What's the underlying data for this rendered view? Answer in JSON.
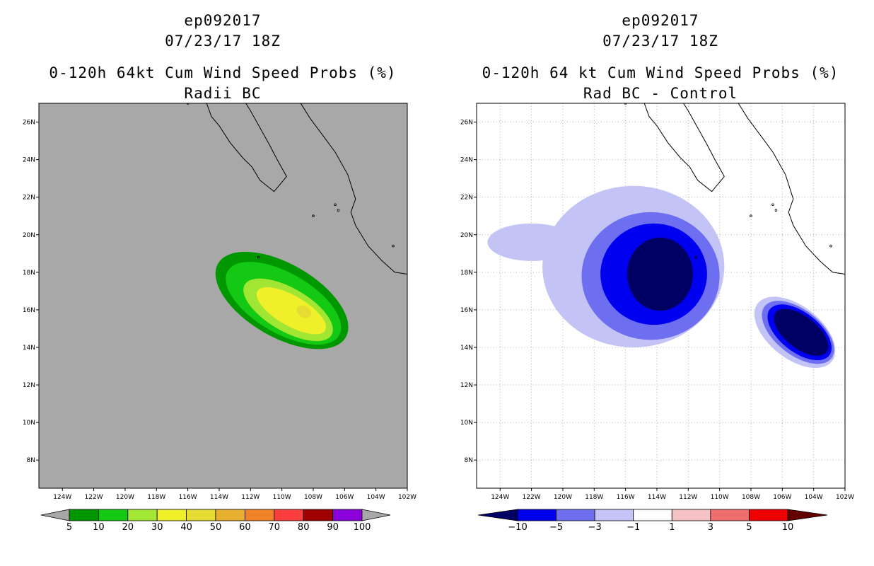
{
  "left_panel": {
    "title_lines": [
      "ep092017",
      "07/23/17 18Z",
      "0-120h 64kt Cum Wind Speed Probs (%)",
      "Radii BC"
    ]
  },
  "right_panel": {
    "title_lines": [
      "ep092017",
      "07/23/17 18Z",
      "0-120h 64 kt Cum Wind Speed Probs (%)",
      "Rad BC - Control"
    ]
  },
  "chart_data": [
    {
      "type": "heatmap",
      "title": "0-120h 64kt Cum Wind Speed Probs (%)",
      "subtitle": "Radii BC",
      "storm_id": "ep092017",
      "valid_time": "07/23/17 18Z",
      "x_ticks": [
        "124W",
        "122W",
        "120W",
        "118W",
        "116W",
        "114W",
        "112W",
        "110W",
        "108W",
        "106W",
        "104W",
        "102W"
      ],
      "y_ticks": [
        "8N",
        "10N",
        "12N",
        "14N",
        "16N",
        "18N",
        "20N",
        "22N",
        "24N",
        "26N"
      ],
      "xlim": [
        -125.5,
        -102
      ],
      "ylim": [
        6.5,
        27
      ],
      "grid": false,
      "background": "#a8a8a8",
      "colorbar": {
        "levels": [
          "5",
          "10",
          "20",
          "30",
          "40",
          "50",
          "60",
          "70",
          "80",
          "90",
          "100"
        ],
        "colors": [
          "#009700",
          "#14c914",
          "#a0e632",
          "#f0f02a",
          "#e6dc32",
          "#e6af2d",
          "#f08228",
          "#fa3c3c",
          "#a00000",
          "#8c00dc"
        ],
        "end_color": "#a8a8a8"
      },
      "contours": [
        {
          "level": 5,
          "color": "#009700",
          "center": [
            -110.0,
            16.5
          ],
          "rx_deg": 4.7,
          "ry_deg": 1.95,
          "rot_deg": 30
        },
        {
          "level": 10,
          "color": "#14c914",
          "center": [
            -109.9,
            16.35
          ],
          "rx_deg": 4.1,
          "ry_deg": 1.6,
          "rot_deg": 30
        },
        {
          "level": 20,
          "color": "#a0e632",
          "center": [
            -109.6,
            16.0
          ],
          "rx_deg": 3.2,
          "ry_deg": 1.15,
          "rot_deg": 30
        },
        {
          "level": 30,
          "color": "#f0f02a",
          "center": [
            -109.4,
            15.95
          ],
          "rx_deg": 2.5,
          "ry_deg": 0.8,
          "rot_deg": 30
        },
        {
          "level": 40,
          "color": "#e6dc32",
          "center": [
            -108.6,
            15.9
          ],
          "rx_deg": 0.5,
          "ry_deg": 0.3,
          "rot_deg": 30
        }
      ]
    },
    {
      "type": "heatmap",
      "title": "0-120h 64 kt Cum Wind Speed Probs (%)",
      "subtitle": "Rad BC - Control",
      "storm_id": "ep092017",
      "valid_time": "07/23/17 18Z",
      "x_ticks": [
        "124W",
        "122W",
        "120W",
        "118W",
        "116W",
        "114W",
        "112W",
        "110W",
        "108W",
        "106W",
        "104W",
        "102W"
      ],
      "y_ticks": [
        "8N",
        "10N",
        "12N",
        "14N",
        "16N",
        "18N",
        "20N",
        "22N",
        "24N",
        "26N"
      ],
      "xlim": [
        -125.5,
        -102
      ],
      "ylim": [
        6.5,
        27
      ],
      "grid": true,
      "background": "#ffffff",
      "colorbar": {
        "levels": [
          "-10",
          "-5",
          "-3",
          "-1",
          "1",
          "3",
          "5",
          "10"
        ],
        "colors": [
          "#000064",
          "#0000f0",
          "#6e6ef0",
          "#c3c3f5",
          "#ffffff",
          "#f5c3c3",
          "#f06e6e",
          "#f00000",
          "#640000"
        ]
      },
      "contours": [
        {
          "level": -1,
          "color": "#c3c3f5",
          "center": [
            -115.5,
            18.3
          ],
          "rx_deg": 5.8,
          "ry_deg": 4.3,
          "rot_deg": 0
        },
        {
          "level": -1,
          "color": "#c3c3f5",
          "center": [
            -122.0,
            19.6
          ],
          "rx_deg": 2.8,
          "ry_deg": 1.0,
          "rot_deg": 0
        },
        {
          "level": -3,
          "color": "#6e6ef0",
          "center": [
            -114.4,
            17.8
          ],
          "rx_deg": 4.4,
          "ry_deg": 3.4,
          "rot_deg": 0
        },
        {
          "level": -5,
          "color": "#0000f0",
          "center": [
            -114.2,
            17.9
          ],
          "rx_deg": 3.4,
          "ry_deg": 2.7,
          "rot_deg": 0
        },
        {
          "level": -10,
          "color": "#000064",
          "center": [
            -113.8,
            17.9
          ],
          "rx_deg": 2.1,
          "ry_deg": 1.95,
          "rot_deg": 0
        },
        {
          "level": -1,
          "color": "#c3c3f5",
          "center": [
            -105.2,
            14.8
          ],
          "rx_deg": 3.0,
          "ry_deg": 1.4,
          "rot_deg": 38
        },
        {
          "level": -3,
          "color": "#6e6ef0",
          "center": [
            -105.0,
            14.8
          ],
          "rx_deg": 2.7,
          "ry_deg": 1.2,
          "rot_deg": 38
        },
        {
          "level": -5,
          "color": "#0000f0",
          "center": [
            -104.9,
            14.8
          ],
          "rx_deg": 2.4,
          "ry_deg": 1.05,
          "rot_deg": 38
        },
        {
          "level": -10,
          "color": "#000064",
          "center": [
            -104.8,
            14.8
          ],
          "rx_deg": 2.05,
          "ry_deg": 0.85,
          "rot_deg": 38
        }
      ]
    }
  ]
}
